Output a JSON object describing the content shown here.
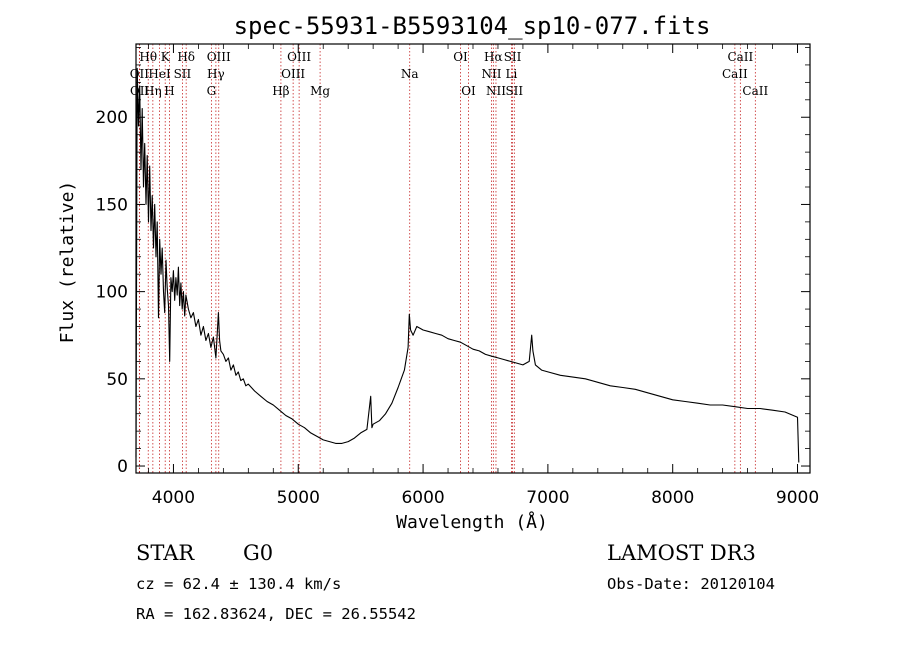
{
  "title": "spec-55931-B5593104_sp10-077.fits",
  "info": {
    "class": "STAR",
    "subclass": "G0",
    "survey": "LAMOST DR3",
    "cz": "cz = 62.4 ± 130.4 km/s",
    "obs_date": "Obs-Date: 20120104",
    "coords": "RA = 162.83624, DEC =  26.55542"
  },
  "colors": {
    "spectrum": "#000000",
    "line_marker": "#c62828",
    "axis": "#000000"
  },
  "chart_data": {
    "type": "line",
    "title": "spec-55931-B5593104_sp10-077.fits",
    "xlabel": "Wavelength (Å)",
    "ylabel": "Flux (relative)",
    "xlim": [
      3700,
      9100
    ],
    "ylim": [
      -4,
      242
    ],
    "x_ticks": [
      4000,
      5000,
      6000,
      7000,
      8000,
      9000
    ],
    "y_ticks": [
      0,
      50,
      100,
      150,
      200
    ],
    "grid": false,
    "series": [
      {
        "name": "flux",
        "points": [
          [
            3700,
            5
          ],
          [
            3710,
            228
          ],
          [
            3720,
            195
          ],
          [
            3730,
            218
          ],
          [
            3740,
            170
          ],
          [
            3750,
            205
          ],
          [
            3760,
            160
          ],
          [
            3770,
            185
          ],
          [
            3780,
            150
          ],
          [
            3790,
            178
          ],
          [
            3800,
            140
          ],
          [
            3810,
            172
          ],
          [
            3820,
            135
          ],
          [
            3830,
            155
          ],
          [
            3840,
            125
          ],
          [
            3850,
            150
          ],
          [
            3860,
            120
          ],
          [
            3870,
            140
          ],
          [
            3880,
            85
          ],
          [
            3890,
            130
          ],
          [
            3900,
            110
          ],
          [
            3910,
            125
          ],
          [
            3920,
            100
          ],
          [
            3930,
            88
          ],
          [
            3940,
            118
          ],
          [
            3950,
            102
          ],
          [
            3960,
            92
          ],
          [
            3970,
            60
          ],
          [
            3980,
            108
          ],
          [
            3990,
            100
          ],
          [
            4000,
            112
          ],
          [
            4010,
            95
          ],
          [
            4020,
            108
          ],
          [
            4030,
            98
          ],
          [
            4040,
            114
          ],
          [
            4050,
            92
          ],
          [
            4060,
            105
          ],
          [
            4070,
            90
          ],
          [
            4080,
            100
          ],
          [
            4090,
            86
          ],
          [
            4100,
            98
          ],
          [
            4120,
            90
          ],
          [
            4140,
            85
          ],
          [
            4160,
            88
          ],
          [
            4180,
            80
          ],
          [
            4200,
            84
          ],
          [
            4220,
            75
          ],
          [
            4240,
            80
          ],
          [
            4260,
            72
          ],
          [
            4280,
            76
          ],
          [
            4300,
            68
          ],
          [
            4320,
            74
          ],
          [
            4340,
            62
          ],
          [
            4360,
            88
          ],
          [
            4370,
            72
          ],
          [
            4380,
            66
          ],
          [
            4400,
            64
          ],
          [
            4420,
            60
          ],
          [
            4440,
            62
          ],
          [
            4460,
            55
          ],
          [
            4480,
            58
          ],
          [
            4500,
            52
          ],
          [
            4520,
            54
          ],
          [
            4540,
            49
          ],
          [
            4560,
            50
          ],
          [
            4580,
            46
          ],
          [
            4600,
            47
          ],
          [
            4650,
            43
          ],
          [
            4700,
            40
          ],
          [
            4750,
            37
          ],
          [
            4800,
            35
          ],
          [
            4850,
            32
          ],
          [
            4900,
            29
          ],
          [
            4950,
            27
          ],
          [
            5000,
            24
          ],
          [
            5050,
            22
          ],
          [
            5100,
            19
          ],
          [
            5150,
            17
          ],
          [
            5200,
            15
          ],
          [
            5250,
            14
          ],
          [
            5300,
            13
          ],
          [
            5350,
            13
          ],
          [
            5400,
            14
          ],
          [
            5450,
            16
          ],
          [
            5500,
            19
          ],
          [
            5550,
            21
          ],
          [
            5580,
            40
          ],
          [
            5590,
            22
          ],
          [
            5600,
            24
          ],
          [
            5650,
            26
          ],
          [
            5700,
            30
          ],
          [
            5750,
            36
          ],
          [
            5800,
            45
          ],
          [
            5850,
            55
          ],
          [
            5880,
            68
          ],
          [
            5890,
            87
          ],
          [
            5900,
            78
          ],
          [
            5920,
            75
          ],
          [
            5950,
            80
          ],
          [
            6000,
            78
          ],
          [
            6050,
            77
          ],
          [
            6100,
            76
          ],
          [
            6150,
            75
          ],
          [
            6200,
            73
          ],
          [
            6250,
            72
          ],
          [
            6300,
            71
          ],
          [
            6350,
            69
          ],
          [
            6400,
            67
          ],
          [
            6450,
            66
          ],
          [
            6500,
            64
          ],
          [
            6550,
            63
          ],
          [
            6600,
            62
          ],
          [
            6650,
            61
          ],
          [
            6700,
            60
          ],
          [
            6750,
            59
          ],
          [
            6800,
            58
          ],
          [
            6850,
            60
          ],
          [
            6870,
            75
          ],
          [
            6880,
            66
          ],
          [
            6900,
            58
          ],
          [
            6950,
            55
          ],
          [
            7000,
            54
          ],
          [
            7100,
            52
          ],
          [
            7200,
            51
          ],
          [
            7300,
            50
          ],
          [
            7400,
            48
          ],
          [
            7500,
            46
          ],
          [
            7600,
            45
          ],
          [
            7700,
            44
          ],
          [
            7800,
            42
          ],
          [
            7900,
            40
          ],
          [
            8000,
            38
          ],
          [
            8100,
            37
          ],
          [
            8200,
            36
          ],
          [
            8300,
            35
          ],
          [
            8400,
            35
          ],
          [
            8500,
            34
          ],
          [
            8600,
            33
          ],
          [
            8700,
            33
          ],
          [
            8800,
            32
          ],
          [
            8900,
            31
          ],
          [
            9000,
            28
          ],
          [
            9010,
            2
          ]
        ]
      }
    ],
    "lines": [
      {
        "label": "Hθ",
        "wavelength": 3798,
        "row": 1
      },
      {
        "label": "OII",
        "wavelength": 3727,
        "row": 2
      },
      {
        "label": "OII",
        "wavelength": 3729,
        "row": 3
      },
      {
        "label": "K",
        "wavelength": 3934,
        "row": 1
      },
      {
        "label": "HeI",
        "wavelength": 3889,
        "row": 2
      },
      {
        "label": "Hη",
        "wavelength": 3835,
        "row": 3
      },
      {
        "label": "Hδ",
        "wavelength": 4102,
        "row": 1
      },
      {
        "label": "SII",
        "wavelength": 4072,
        "row": 2
      },
      {
        "label": "H",
        "wavelength": 3968,
        "row": 3
      },
      {
        "label": "OIII",
        "wavelength": 4363,
        "row": 1
      },
      {
        "label": "Hγ",
        "wavelength": 4340,
        "row": 2
      },
      {
        "label": "G",
        "wavelength": 4304,
        "row": 3
      },
      {
        "label": "OIII",
        "wavelength": 5007,
        "row": 1
      },
      {
        "label": "OIII",
        "wavelength": 4959,
        "row": 2
      },
      {
        "label": "Hβ",
        "wavelength": 4861,
        "row": 3
      },
      {
        "label": "Mg",
        "wavelength": 5175,
        "row": 3
      },
      {
        "label": "Na",
        "wavelength": 5893,
        "row": 2
      },
      {
        "label": "OI",
        "wavelength": 6300,
        "row": 1
      },
      {
        "label": "OI",
        "wavelength": 6364,
        "row": 3
      },
      {
        "label": "Hα",
        "wavelength": 6563,
        "row": 1
      },
      {
        "label": "NII",
        "wavelength": 6548,
        "row": 2
      },
      {
        "label": "NII",
        "wavelength": 6584,
        "row": 3
      },
      {
        "label": "SII",
        "wavelength": 6717,
        "row": 1
      },
      {
        "label": "Li",
        "wavelength": 6708,
        "row": 2
      },
      {
        "label": "SII",
        "wavelength": 6731,
        "row": 3
      },
      {
        "label": "CaII",
        "wavelength": 8542,
        "row": 1
      },
      {
        "label": "CaII",
        "wavelength": 8498,
        "row": 2
      },
      {
        "label": "CaII",
        "wavelength": 8662,
        "row": 3
      }
    ]
  }
}
